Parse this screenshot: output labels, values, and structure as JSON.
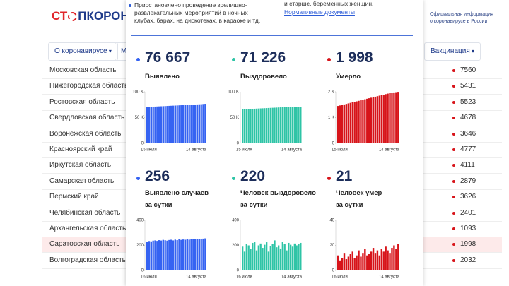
{
  "header": {
    "logo_left": "СТ",
    "logo_right": "ПКОРОНАВИ",
    "info": [
      "Официальная информация",
      "о коронавирусе в России"
    ]
  },
  "nav": [
    "О коронавирусе",
    "М",
    "Вакцинация"
  ],
  "regions": [
    {
      "name": "Московская область",
      "value": 7560
    },
    {
      "name": "Нижегородская область",
      "value": 5431
    },
    {
      "name": "Ростовская область",
      "value": 5523
    },
    {
      "name": "Свердловская область",
      "value": 4678
    },
    {
      "name": "Воронежская область",
      "value": 3646
    },
    {
      "name": "Красноярский край",
      "value": 4777
    },
    {
      "name": "Иркутская область",
      "value": 4111
    },
    {
      "name": "Самарская область",
      "value": 2879
    },
    {
      "name": "Пермский край",
      "value": 3626
    },
    {
      "name": "Челябинская область",
      "value": 2401
    },
    {
      "name": "Архангельская область",
      "value": 1093
    },
    {
      "name": "Саратовская область",
      "value": 1998
    },
    {
      "name": "Волгоградская область",
      "value": 2032
    }
  ],
  "modal": {
    "notice": [
      "Приостановлено проведение зрелищно-",
      "развлекательных мероприятий в ночных",
      "клубах, барах, на дискотеках, в караоке и тд."
    ],
    "notice_right": "и старше, беременных женщин.",
    "link": "Нормативные документы",
    "cards": [
      {
        "value": "76 667",
        "label": [
          "Выявлено"
        ],
        "chart": {
          "type": "bar",
          "color": "#3563f2",
          "ylim": [
            0,
            100000
          ],
          "yticks": [
            0,
            {
              "value": 50000,
              "label": "50 K"
            },
            {
              "value": 100000,
              "label": "100 K"
            }
          ],
          "xlabels": [
            "15 июля",
            "14 августа"
          ],
          "values": [
            70500,
            70700,
            70900,
            71100,
            71300,
            71500,
            71700,
            71900,
            72100,
            72300,
            72500,
            72700,
            72900,
            73100,
            73300,
            73500,
            73700,
            73900,
            74100,
            74300,
            74500,
            74700,
            74900,
            75100,
            75300,
            75500,
            75700,
            75900,
            76300,
            76667
          ]
        }
      },
      {
        "value": "71 226",
        "label": [
          "Выздоровело"
        ],
        "chart": {
          "type": "bar",
          "color": "#2ec4a6",
          "ylim": [
            0,
            100000
          ],
          "yticks": [
            0,
            {
              "value": 50000,
              "label": "50 K"
            },
            {
              "value": 100000,
              "label": "100 K"
            }
          ],
          "xlabels": [
            "15 июля",
            "14 августа"
          ],
          "values": [
            66000,
            66200,
            66400,
            66600,
            66800,
            67000,
            67200,
            67400,
            67600,
            67800,
            68000,
            68200,
            68400,
            68600,
            68800,
            69000,
            69200,
            69400,
            69600,
            69800,
            70000,
            70200,
            70400,
            70600,
            70800,
            71000,
            71100,
            71150,
            71200,
            71226
          ]
        }
      },
      {
        "value": "1 998",
        "label": [
          "Умерло"
        ],
        "chart": {
          "type": "bar",
          "color": "#d7141a",
          "ylim": [
            0,
            2000
          ],
          "yticks": [
            0,
            {
              "value": 1000,
              "label": "1 K"
            },
            {
              "value": 2000,
              "label": "2 K"
            }
          ],
          "xlabels": [
            "15 июля",
            "14 августа"
          ],
          "values": [
            1450,
            1470,
            1490,
            1510,
            1530,
            1550,
            1570,
            1590,
            1610,
            1630,
            1650,
            1670,
            1690,
            1710,
            1730,
            1750,
            1770,
            1790,
            1810,
            1830,
            1850,
            1870,
            1890,
            1910,
            1930,
            1950,
            1960,
            1975,
            1985,
            1998
          ]
        }
      },
      {
        "value": "256",
        "label": [
          "Выявлено случаев",
          "за сутки"
        ],
        "chart": {
          "type": "bar",
          "color": "#3563f2",
          "ylim": [
            0,
            400
          ],
          "yticks": [
            0,
            200,
            400
          ],
          "xlabels": [
            "16 июля",
            "14 августа"
          ],
          "values": [
            230,
            235,
            232,
            238,
            240,
            236,
            242,
            239,
            244,
            241,
            238,
            243,
            245,
            240,
            246,
            242,
            248,
            244,
            247,
            245,
            249,
            246,
            250,
            248,
            252,
            249,
            251,
            253,
            254,
            256
          ]
        }
      },
      {
        "value": "220",
        "label": [
          "Человек выздоровело",
          "за сутки"
        ],
        "chart": {
          "type": "bar",
          "color": "#2ec4a6",
          "ylim": [
            0,
            400
          ],
          "yticks": [
            0,
            200,
            400
          ],
          "xlabels": [
            "16 июля",
            "14 августа"
          ],
          "values": [
            190,
            150,
            210,
            200,
            170,
            220,
            230,
            160,
            200,
            215,
            180,
            205,
            225,
            150,
            195,
            210,
            240,
            185,
            200,
            175,
            230,
            210,
            160,
            220,
            205,
            190,
            215,
            200,
            210,
            220
          ]
        }
      },
      {
        "value": "21",
        "label": [
          "Человек умер",
          "за сутки"
        ],
        "chart": {
          "type": "bar",
          "color": "#d7141a",
          "ylim": [
            0,
            40
          ],
          "yticks": [
            0,
            20,
            40
          ],
          "xlabels": [
            "16 июля",
            "14 августа"
          ],
          "values": [
            12,
            8,
            10,
            14,
            9,
            11,
            13,
            15,
            10,
            12,
            16,
            11,
            14,
            17,
            12,
            13,
            15,
            18,
            14,
            16,
            12,
            17,
            15,
            19,
            16,
            14,
            18,
            20,
            17,
            21
          ]
        }
      }
    ]
  }
}
